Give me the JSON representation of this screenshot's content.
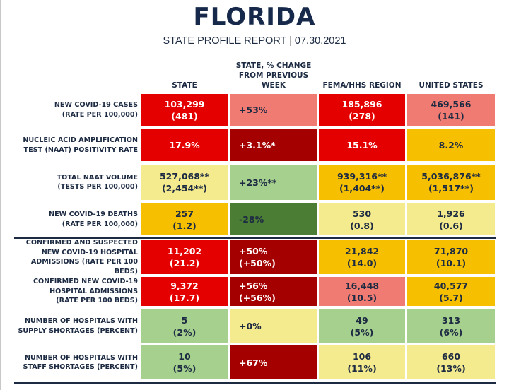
{
  "header": {
    "title": "FLORIDA",
    "subtitle_left": "STATE PROFILE REPORT",
    "subtitle_sep": "|",
    "subtitle_date": "07.30.2021"
  },
  "columns": [
    {
      "key": "state",
      "label_lines": [
        "STATE"
      ]
    },
    {
      "key": "change",
      "label_lines": [
        "STATE, % CHANGE",
        "FROM PREVIOUS",
        "WEEK"
      ]
    },
    {
      "key": "region",
      "label_lines": [
        "FEMA/HHS REGION"
      ]
    },
    {
      "key": "us",
      "label_lines": [
        "UNITED STATES"
      ]
    }
  ],
  "palette": {
    "red": "#e50000",
    "dark_red": "#a50000",
    "salmon": "#ef7b72",
    "orange": "#f6bf00",
    "light_yellow": "#f4ea8e",
    "light_green": "#a6d08e",
    "dark_green": "#4c7d35",
    "text_dark": "#1c2a42"
  },
  "rows": [
    {
      "label_lines": [
        "NEW COVID-19 CASES",
        "(RATE PER 100,000)"
      ],
      "cells": [
        {
          "lines": [
            "103,299",
            "(481)"
          ],
          "color": "red"
        },
        {
          "lines": [
            "+53%"
          ],
          "color": "salmon"
        },
        {
          "lines": [
            "185,896",
            "(278)"
          ],
          "color": "red"
        },
        {
          "lines": [
            "469,566",
            "(141)"
          ],
          "color": "salmon"
        }
      ]
    },
    {
      "label_lines": [
        "NUCLEIC ACID AMPLIFICATION",
        "TEST (NAAT) POSITIVITY RATE"
      ],
      "cells": [
        {
          "lines": [
            "17.9%"
          ],
          "color": "red"
        },
        {
          "lines": [
            "+3.1%*"
          ],
          "color": "dark_red"
        },
        {
          "lines": [
            "15.1%"
          ],
          "color": "red"
        },
        {
          "lines": [
            "8.2%"
          ],
          "color": "orange"
        }
      ]
    },
    {
      "label_lines": [
        "TOTAL NAAT VOLUME",
        "(TESTS PER 100,000)"
      ],
      "cells": [
        {
          "lines": [
            "527,068**",
            "(2,454**)"
          ],
          "color": "light_yellow"
        },
        {
          "lines": [
            "+23%**"
          ],
          "color": "light_green"
        },
        {
          "lines": [
            "939,316**",
            "(1,404**)"
          ],
          "color": "orange"
        },
        {
          "lines": [
            "5,036,876**",
            "(1,517**)"
          ],
          "color": "orange"
        }
      ]
    },
    {
      "label_lines": [
        "NEW COVID-19 DEATHS",
        "(RATE PER 100,000)"
      ],
      "cells": [
        {
          "lines": [
            "257",
            "(1.2)"
          ],
          "color": "orange"
        },
        {
          "lines": [
            "-28%"
          ],
          "color": "dark_green"
        },
        {
          "lines": [
            "530",
            "(0.8)"
          ],
          "color": "light_yellow"
        },
        {
          "lines": [
            "1,926",
            "(0.6)"
          ],
          "color": "light_yellow"
        }
      ]
    },
    {
      "label_lines": [
        "CONFIRMED AND SUSPECTED",
        "NEW COVID-19 HOSPITAL",
        "ADMISSIONS (RATE PER 100 BEDS)"
      ],
      "cells": [
        {
          "lines": [
            "11,202",
            "(21.2)"
          ],
          "color": "red"
        },
        {
          "lines": [
            "+50%",
            "(+50%)"
          ],
          "color": "dark_red"
        },
        {
          "lines": [
            "21,842",
            "(14.0)"
          ],
          "color": "orange"
        },
        {
          "lines": [
            "71,870",
            "(10.1)"
          ],
          "color": "orange"
        }
      ]
    },
    {
      "label_lines": [
        "CONFIRMED NEW COVID-19",
        "HOSPITAL ADMISSIONS",
        "(RATE PER 100 BEDS)"
      ],
      "cells": [
        {
          "lines": [
            "9,372",
            "(17.7)"
          ],
          "color": "red"
        },
        {
          "lines": [
            "+56%",
            "(+56%)"
          ],
          "color": "dark_red"
        },
        {
          "lines": [
            "16,448",
            "(10.5)"
          ],
          "color": "salmon"
        },
        {
          "lines": [
            "40,577",
            "(5.7)"
          ],
          "color": "orange"
        }
      ]
    },
    {
      "label_lines": [
        "NUMBER OF HOSPITALS WITH",
        "SUPPLY SHORTAGES (PERCENT)"
      ],
      "cells": [
        {
          "lines": [
            "5",
            "(2%)"
          ],
          "color": "light_green"
        },
        {
          "lines": [
            "+0%"
          ],
          "color": "light_yellow"
        },
        {
          "lines": [
            "49",
            "(5%)"
          ],
          "color": "light_green"
        },
        {
          "lines": [
            "313",
            "(6%)"
          ],
          "color": "light_green"
        }
      ]
    },
    {
      "label_lines": [
        "NUMBER OF HOSPITALS WITH",
        "STAFF SHORTAGES (PERCENT)"
      ],
      "cells": [
        {
          "lines": [
            "10",
            "(5%)"
          ],
          "color": "light_green"
        },
        {
          "lines": [
            "+67%"
          ],
          "color": "dark_red"
        },
        {
          "lines": [
            "106",
            "(11%)"
          ],
          "color": "light_yellow"
        },
        {
          "lines": [
            "660",
            "(13%)"
          ],
          "color": "light_yellow"
        }
      ]
    }
  ]
}
